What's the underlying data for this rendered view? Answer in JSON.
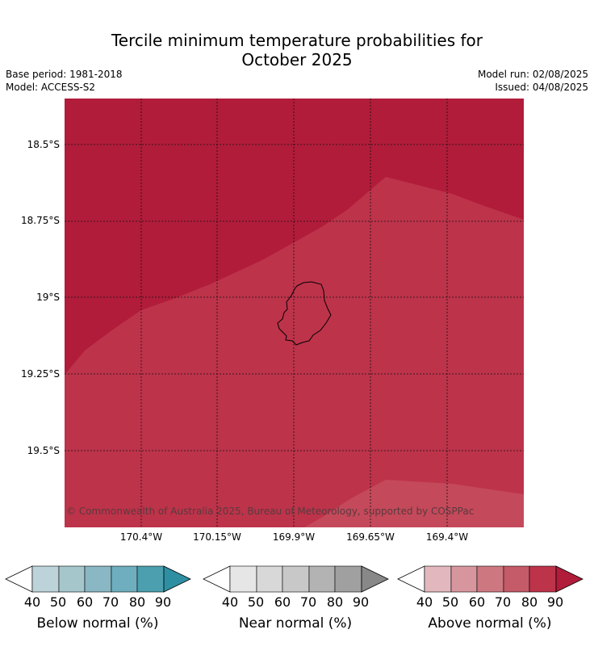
{
  "header": {
    "title_line1": "Tercile minimum temperature probabilities for",
    "title_line2": "October 2025",
    "base_period": "Base period: 1981-2018",
    "model": "Model: ACCESS-S2",
    "model_run": "Model run: 02/08/2025",
    "issued": "Issued: 04/08/2025"
  },
  "map": {
    "lat_labels": [
      "18.5°S",
      "18.75°S",
      "19°S",
      "19.25°S",
      "19.5°S"
    ],
    "lon_labels": [
      "170.4°W",
      "170.15°W",
      "169.9°W",
      "169.65°W",
      "169.4°W"
    ],
    "copyright": "© Commonwealth of Australia 2025, Bureau of Meteorology, supported by COSPPac",
    "region_colors": {
      "above_90": "#b11c3a",
      "above_80": "#bd334a",
      "above_70": "#c4495a"
    }
  },
  "colorbars": [
    {
      "label": "Below normal (%)",
      "ticks": [
        "40",
        "50",
        "60",
        "70",
        "80",
        "90"
      ],
      "colors": [
        "#ffffff",
        "#bdd3da",
        "#a5c7cc",
        "#89b7c3",
        "#6eaebe",
        "#4b9fae",
        "#2e8fa3"
      ]
    },
    {
      "label": "Near normal (%)",
      "ticks": [
        "40",
        "50",
        "60",
        "70",
        "80",
        "90"
      ],
      "colors": [
        "#ffffff",
        "#e6e6e6",
        "#d8d8d8",
        "#c8c8c8",
        "#b3b3b3",
        "#a0a0a0",
        "#888888"
      ]
    },
    {
      "label": "Above normal (%)",
      "ticks": [
        "40",
        "50",
        "60",
        "70",
        "80",
        "90"
      ],
      "colors": [
        "#ffffff",
        "#e2b8be",
        "#d7969e",
        "#cd7880",
        "#c55a68",
        "#bd334a",
        "#b11c3a"
      ]
    }
  ]
}
